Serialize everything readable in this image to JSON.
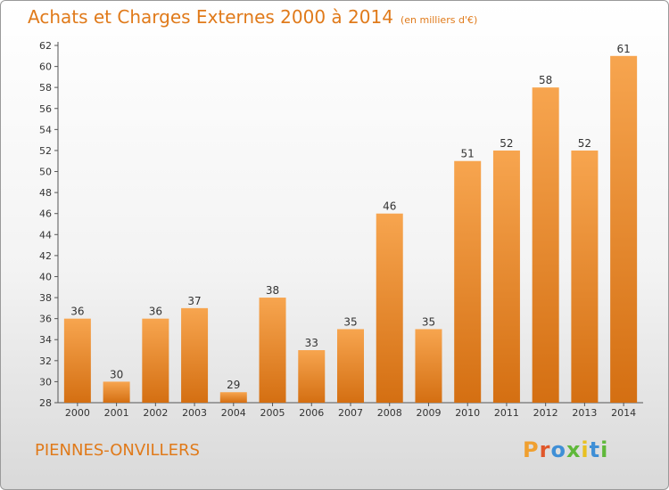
{
  "header": {
    "title": "Achats et Charges Externes 2000 à 2014",
    "subtitle": "(en milliers d'€)"
  },
  "footer": {
    "place": "PIENNES-ONVILLERS",
    "logo": "Proxiti"
  },
  "colors": {
    "bar_light": "#f7a54f",
    "bar_dark": "#d46f12",
    "accent": "#e07a1a",
    "logo": [
      "#f0a030",
      "#e0572a",
      "#3f8fd6",
      "#5fb83a",
      "#e8c020",
      "#3f8fd6",
      "#5fb83a"
    ]
  },
  "chart_data": {
    "type": "bar",
    "title": "Achats et Charges Externes 2000 à 2014",
    "subtitle": "(en milliers d'€)",
    "xlabel": "",
    "ylabel": "",
    "categories": [
      "2000",
      "2001",
      "2002",
      "2003",
      "2004",
      "2005",
      "2006",
      "2007",
      "2008",
      "2009",
      "2010",
      "2011",
      "2012",
      "2013",
      "2014"
    ],
    "values": [
      36,
      30,
      36,
      37,
      29,
      38,
      33,
      35,
      46,
      35,
      51,
      52,
      58,
      52,
      61
    ],
    "ylim": [
      28,
      62
    ],
    "ytick_step": 2,
    "grid": false,
    "legend": "none"
  }
}
